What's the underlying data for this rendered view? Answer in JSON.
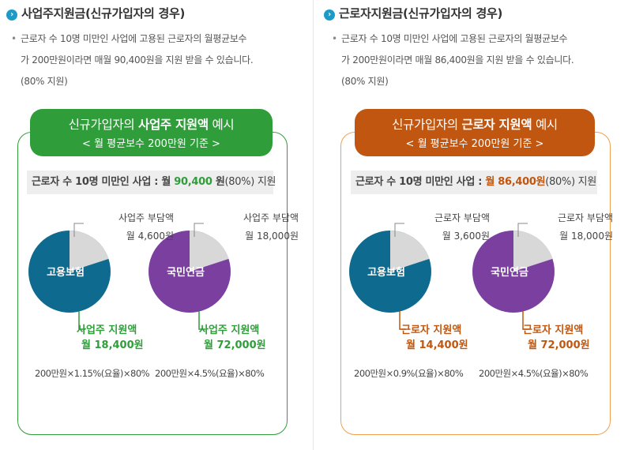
{
  "left": {
    "title": "사업주지원금(신규가입자의 경우)",
    "desc_bullet": "•",
    "desc_lines": [
      "근로자 수 10명 미만인 사업에 고용된 근로자의 월평균보수",
      "가 200만원이라면 매월 90,400원을 지원 받을 수 있습니다.",
      "(80% 지원)"
    ],
    "header_pre": "신규가입자의 ",
    "header_bold": "사업주 지원액",
    "header_post": " 예시",
    "header_sub": "< 월 평균보수 200만원 기준 >",
    "summary_pre": "근로자 수 10명 미만인 사업 : ",
    "summary_amount_pre": "월 ",
    "summary_amount_num": "90,400",
    "summary_amount_unit": " 원",
    "summary_post": "(80%) 지원",
    "accent": "#2f9e3a",
    "pies": [
      {
        "name": "고용보험",
        "burden_label": "사업주 부담액",
        "burden_amount": "월 4,600원",
        "support_label": "사업주 지원액",
        "support_amount": "월 18,400원",
        "formula": "200만원×1.15%(요율)×80%",
        "color": "#0e6b8f",
        "support_fraction": 0.8
      },
      {
        "name": "국민연금",
        "burden_label": "사업주 부담액",
        "burden_amount": "월 18,000원",
        "support_label": "사업주 지원액",
        "support_amount": "월 72,000원",
        "formula": "200만원×4.5%(요율)×80%",
        "color": "#7b3fa0",
        "support_fraction": 0.8
      }
    ]
  },
  "right": {
    "title": "근로자지원금(신규가입자의 경우)",
    "desc_bullet": "•",
    "desc_lines": [
      "근로자 수 10명 미만인 사업에 고용된 근로자의 월평균보수",
      "가 200만원이라면 매월 86,400원을 지원 받을 수 있습니다.",
      "(80% 지원)"
    ],
    "header_pre": "신규가입자의 ",
    "header_bold": "근로자 지원액",
    "header_post": " 예시",
    "header_sub": "< 월 평균보수 200만원 기준 >",
    "summary_pre": "근로자 수 10명 미만인 사업 : ",
    "summary_amount_pre": "월 ",
    "summary_amount_num": "86,400",
    "summary_amount_unit": "원",
    "summary_post": "(80%) 지원",
    "accent": "#c0560f",
    "pies": [
      {
        "name": "고용보험",
        "burden_label": "근로자 부담액",
        "burden_amount": "월 3,600원",
        "support_label": "근로자 지원액",
        "support_amount": "월 14,400원",
        "formula": "200만원×0.9%(요율)×80%",
        "color": "#0e6b8f",
        "support_fraction": 0.8
      },
      {
        "name": "국민연금",
        "burden_label": "근로자 부담액",
        "burden_amount": "월 18,000원",
        "support_label": "근로자 지원액",
        "support_amount": "월 72,000원",
        "formula": "200만원×4.5%(요율)×80%",
        "color": "#7b3fa0",
        "support_fraction": 0.8
      }
    ]
  },
  "burden_color": "#d8d8d8"
}
